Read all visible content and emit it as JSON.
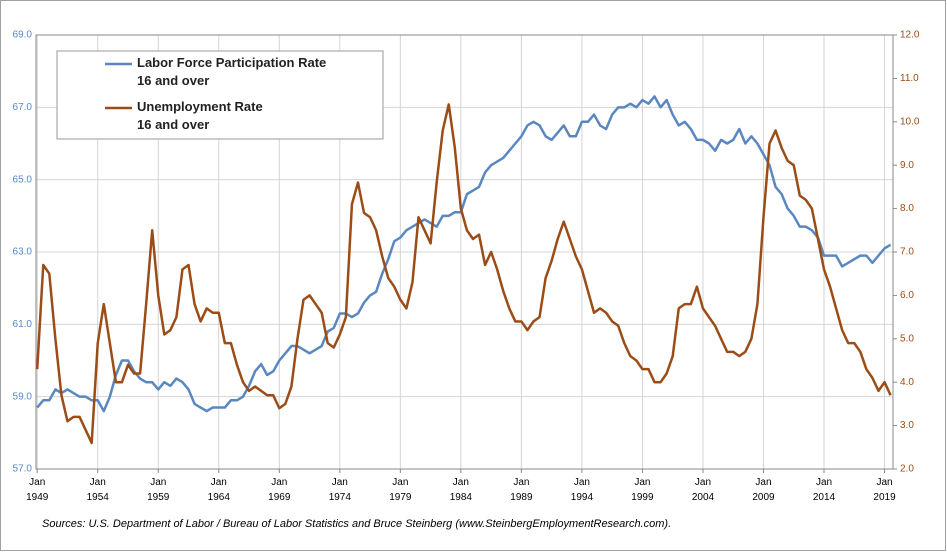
{
  "chart_data": {
    "type": "line",
    "source": "Sources:  U.S. Department of Labor / Bureau of Labor Statistics and Bruce Steinberg (www.SteinbergEmploymentResearch.com).",
    "x": [
      1949,
      1949.5,
      1950,
      1950.5,
      1951,
      1951.5,
      1952,
      1952.5,
      1953,
      1953.5,
      1954,
      1954.5,
      1955,
      1955.5,
      1956,
      1956.5,
      1957,
      1957.5,
      1958,
      1958.5,
      1959,
      1959.5,
      1960,
      1960.5,
      1961,
      1961.5,
      1962,
      1962.5,
      1963,
      1963.5,
      1964,
      1964.5,
      1965,
      1965.5,
      1966,
      1966.5,
      1967,
      1967.5,
      1968,
      1968.5,
      1969,
      1969.5,
      1970,
      1970.5,
      1971,
      1971.5,
      1972,
      1972.5,
      1973,
      1973.5,
      1974,
      1974.5,
      1975,
      1975.5,
      1976,
      1976.5,
      1977,
      1977.5,
      1978,
      1978.5,
      1979,
      1979.5,
      1980,
      1980.5,
      1981,
      1981.5,
      1982,
      1982.5,
      1983,
      1983.5,
      1984,
      1984.5,
      1985,
      1985.5,
      1986,
      1986.5,
      1987,
      1987.5,
      1988,
      1988.5,
      1989,
      1989.5,
      1990,
      1990.5,
      1991,
      1991.5,
      1992,
      1992.5,
      1993,
      1993.5,
      1994,
      1994.5,
      1995,
      1995.5,
      1996,
      1996.5,
      1997,
      1997.5,
      1998,
      1998.5,
      1999,
      1999.5,
      2000,
      2000.5,
      2001,
      2001.5,
      2002,
      2002.5,
      2003,
      2003.5,
      2004,
      2004.5,
      2005,
      2005.5,
      2006,
      2006.5,
      2007,
      2007.5,
      2008,
      2008.5,
      2009,
      2009.5,
      2010,
      2010.5,
      2011,
      2011.5,
      2012,
      2012.5,
      2013,
      2013.5,
      2014,
      2014.5,
      2015,
      2015.5,
      2016,
      2016.5,
      2017,
      2017.5,
      2018,
      2018.5,
      2019,
      2019.5
    ],
    "series": [
      {
        "name": "Labor Force Participation Rate\n16 and over",
        "color": "#5b87c0",
        "values": [
          58.7,
          58.9,
          58.9,
          59.2,
          59.1,
          59.2,
          59.1,
          59.0,
          59.0,
          58.9,
          58.9,
          58.6,
          59.0,
          59.6,
          60.0,
          60.0,
          59.7,
          59.5,
          59.4,
          59.4,
          59.2,
          59.4,
          59.3,
          59.5,
          59.4,
          59.2,
          58.8,
          58.7,
          58.6,
          58.7,
          58.7,
          58.7,
          58.9,
          58.9,
          59.0,
          59.3,
          59.7,
          59.9,
          59.6,
          59.7,
          60.0,
          60.2,
          60.4,
          60.4,
          60.3,
          60.2,
          60.3,
          60.4,
          60.8,
          60.9,
          61.3,
          61.3,
          61.2,
          61.3,
          61.6,
          61.8,
          61.9,
          62.4,
          62.8,
          63.3,
          63.4,
          63.6,
          63.7,
          63.8,
          63.9,
          63.8,
          63.7,
          64.0,
          64.0,
          64.1,
          64.1,
          64.6,
          64.7,
          64.8,
          65.2,
          65.4,
          65.5,
          65.6,
          65.8,
          66.0,
          66.2,
          66.5,
          66.6,
          66.5,
          66.2,
          66.1,
          66.3,
          66.5,
          66.2,
          66.2,
          66.6,
          66.6,
          66.8,
          66.5,
          66.4,
          66.8,
          67.0,
          67.0,
          67.1,
          67.0,
          67.2,
          67.1,
          67.3,
          67.0,
          67.2,
          66.8,
          66.5,
          66.6,
          66.4,
          66.1,
          66.1,
          66.0,
          65.8,
          66.1,
          66.0,
          66.1,
          66.4,
          66.0,
          66.2,
          66.0,
          65.7,
          65.4,
          64.8,
          64.6,
          64.2,
          64.0,
          63.7,
          63.7,
          63.6,
          63.4,
          62.9,
          62.9,
          62.9,
          62.6,
          62.7,
          62.8,
          62.9,
          62.9,
          62.7,
          62.9,
          63.1,
          63.2
        ]
      },
      {
        "name": "Unemployment Rate\n16 and over",
        "color": "#9c4c16",
        "axis": "y2",
        "values": [
          4.3,
          6.7,
          6.5,
          5.0,
          3.7,
          3.1,
          3.2,
          3.2,
          2.9,
          2.6,
          4.9,
          5.8,
          4.9,
          4.0,
          4.0,
          4.4,
          4.2,
          4.2,
          5.8,
          7.5,
          6.0,
          5.1,
          5.2,
          5.5,
          6.6,
          6.7,
          5.8,
          5.4,
          5.7,
          5.6,
          5.6,
          4.9,
          4.9,
          4.4,
          4.0,
          3.8,
          3.9,
          3.8,
          3.7,
          3.7,
          3.4,
          3.5,
          3.9,
          5.0,
          5.9,
          6.0,
          5.8,
          5.6,
          4.9,
          4.8,
          5.1,
          5.5,
          8.1,
          8.6,
          7.9,
          7.8,
          7.5,
          6.9,
          6.4,
          6.2,
          5.9,
          5.7,
          6.3,
          7.8,
          7.5,
          7.2,
          8.6,
          9.8,
          10.4,
          9.4,
          8.0,
          7.5,
          7.3,
          7.4,
          6.7,
          7.0,
          6.6,
          6.1,
          5.7,
          5.4,
          5.4,
          5.2,
          5.4,
          5.5,
          6.4,
          6.8,
          7.3,
          7.7,
          7.3,
          6.9,
          6.6,
          6.1,
          5.6,
          5.7,
          5.6,
          5.4,
          5.3,
          4.9,
          4.6,
          4.5,
          4.3,
          4.3,
          4.0,
          4.0,
          4.2,
          4.6,
          5.7,
          5.8,
          5.8,
          6.2,
          5.7,
          5.5,
          5.3,
          5.0,
          4.7,
          4.7,
          4.6,
          4.7,
          5.0,
          5.8,
          7.8,
          9.5,
          9.8,
          9.4,
          9.1,
          9.0,
          8.3,
          8.2,
          8.0,
          7.3,
          6.6,
          6.2,
          5.7,
          5.2,
          4.9,
          4.9,
          4.7,
          4.3,
          4.1,
          3.8,
          4.0,
          3.7
        ]
      }
    ],
    "xlim": [
      1948.9,
      2019.7
    ],
    "xticks": [
      {
        "value": 1949,
        "label": "Jan\n1949"
      },
      {
        "value": 1954,
        "label": "Jan\n1954"
      },
      {
        "value": 1959,
        "label": "Jan\n1959"
      },
      {
        "value": 1964,
        "label": "Jan\n1964"
      },
      {
        "value": 1969,
        "label": "Jan\n1969"
      },
      {
        "value": 1974,
        "label": "Jan\n1974"
      },
      {
        "value": 1979,
        "label": "Jan\n1979"
      },
      {
        "value": 1984,
        "label": "Jan\n1984"
      },
      {
        "value": 1989,
        "label": "Jan\n1989"
      },
      {
        "value": 1994,
        "label": "Jan\n1994"
      },
      {
        "value": 1999,
        "label": "Jan\n1999"
      },
      {
        "value": 2004,
        "label": "Jan\n2004"
      },
      {
        "value": 2009,
        "label": "Jan\n2009"
      },
      {
        "value": 2014,
        "label": "Jan\n2014"
      },
      {
        "value": 2019,
        "label": "Jan\n2019"
      }
    ],
    "ylim": [
      57,
      69
    ],
    "yticks": [
      {
        "value": 57,
        "label": "57.0"
      },
      {
        "value": 59,
        "label": "59.0"
      },
      {
        "value": 61,
        "label": "61.0"
      },
      {
        "value": 63,
        "label": "63.0"
      },
      {
        "value": 65,
        "label": "65.0"
      },
      {
        "value": 67,
        "label": "67.0"
      },
      {
        "value": 69,
        "label": "69.0"
      }
    ],
    "y2lim": [
      2,
      12
    ],
    "y2ticks": [
      {
        "value": 2,
        "label": "2.0"
      },
      {
        "value": 3,
        "label": "3.0"
      },
      {
        "value": 4,
        "label": "4.0"
      },
      {
        "value": 5,
        "label": "5.0"
      },
      {
        "value": 6,
        "label": "6.0"
      },
      {
        "value": 7,
        "label": "7.0"
      },
      {
        "value": 8,
        "label": "8.0"
      },
      {
        "value": 9,
        "label": "9.0"
      },
      {
        "value": 10,
        "label": "10.0"
      },
      {
        "value": 11,
        "label": "11.0"
      },
      {
        "value": 12,
        "label": "12.0"
      }
    ],
    "grid": true,
    "legend": "top-left"
  }
}
